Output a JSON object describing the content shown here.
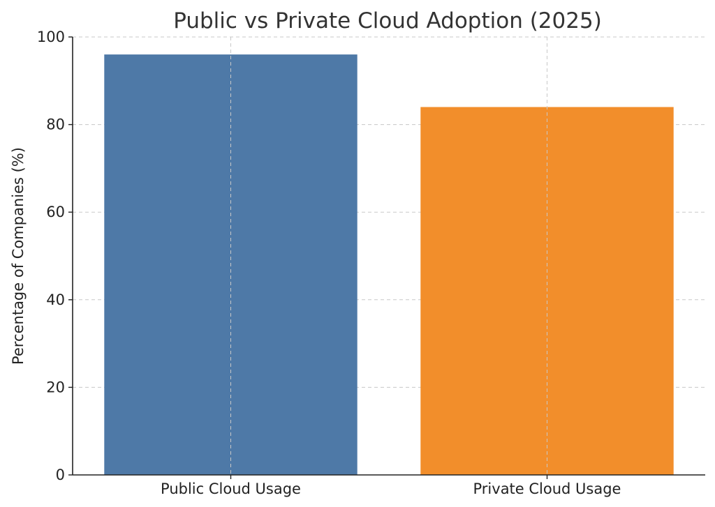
{
  "chart_data": {
    "type": "bar",
    "title": "Public vs Private Cloud Adoption (2025)",
    "xlabel": "",
    "ylabel": "Percentage of Companies (%)",
    "categories": [
      "Public Cloud Usage",
      "Private Cloud Usage"
    ],
    "values": [
      96,
      84
    ],
    "colors": [
      "#4e79a7",
      "#f28e2b"
    ],
    "ylim": [
      0,
      100
    ],
    "yticks": [
      0,
      20,
      40,
      60,
      80,
      100
    ],
    "grid": true
  }
}
